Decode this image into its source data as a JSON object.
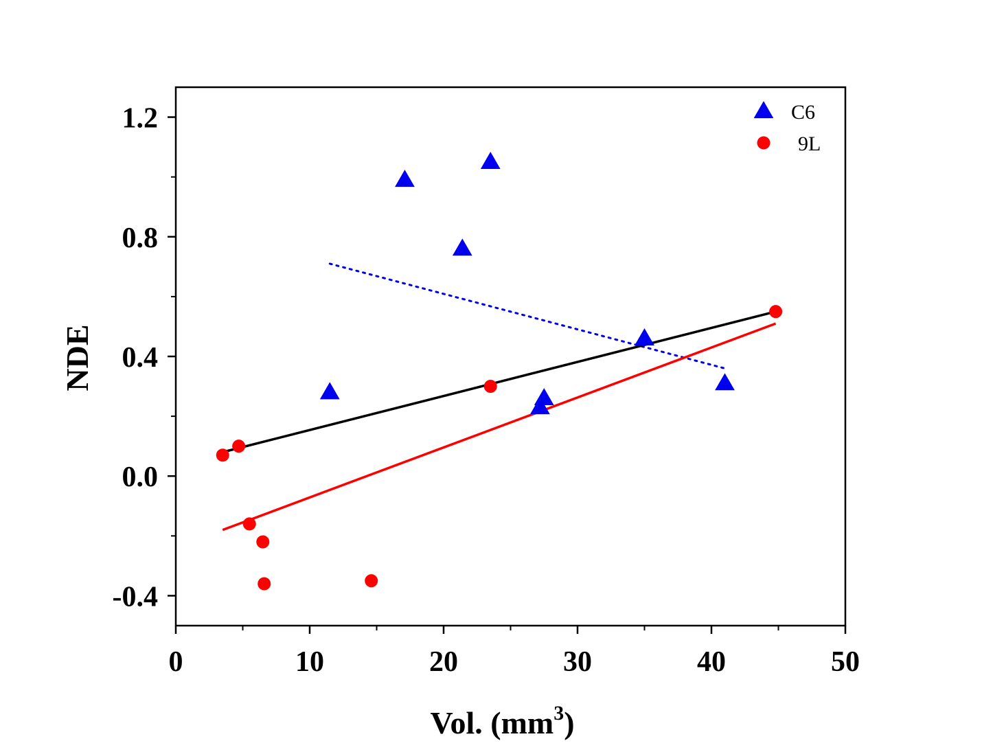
{
  "chart_data": {
    "type": "scatter",
    "title": "",
    "xlabel": "Vol. (mm",
    "xlabel_sup": "3",
    "xlabel_close": ")",
    "ylabel": "NDE",
    "xlim": [
      0,
      50
    ],
    "ylim": [
      -0.5,
      1.3
    ],
    "x_ticks": [
      0,
      10,
      20,
      30,
      40,
      50
    ],
    "x_tick_labels": [
      "0",
      "10",
      "20",
      "30",
      "40",
      "50"
    ],
    "x_minor_ticks": [
      5,
      15,
      25,
      35,
      45
    ],
    "y_ticks": [
      -0.4,
      0.0,
      0.4,
      0.8,
      1.2
    ],
    "y_tick_labels": [
      "-0.4",
      "0.0",
      "0.4",
      "0.8",
      "1.2"
    ],
    "y_minor_ticks": [
      -0.2,
      0.2,
      0.6,
      1.0
    ],
    "legend_position": "top-right",
    "series": [
      {
        "name": "C6",
        "marker": "triangle",
        "color": "#0000ee",
        "points": [
          {
            "x": 11.5,
            "y": 0.28
          },
          {
            "x": 17.1,
            "y": 0.99
          },
          {
            "x": 21.4,
            "y": 0.76
          },
          {
            "x": 23.5,
            "y": 1.05
          },
          {
            "x": 27.2,
            "y": 0.23
          },
          {
            "x": 27.5,
            "y": 0.26
          },
          {
            "x": 35.0,
            "y": 0.46
          },
          {
            "x": 41.0,
            "y": 0.31
          }
        ]
      },
      {
        "name": "9L",
        "marker": "circle",
        "color": "#ff0000",
        "points": [
          {
            "x": 3.5,
            "y": 0.07
          },
          {
            "x": 4.7,
            "y": 0.1
          },
          {
            "x": 5.5,
            "y": -0.16
          },
          {
            "x": 6.5,
            "y": -0.22
          },
          {
            "x": 6.6,
            "y": -0.36
          },
          {
            "x": 14.6,
            "y": -0.35
          },
          {
            "x": 23.5,
            "y": 0.3
          },
          {
            "x": 44.8,
            "y": 0.55
          }
        ]
      }
    ],
    "fit_lines": [
      {
        "name": "C6 fit",
        "color": "#0000ee",
        "style": "dotted",
        "x": [
          11.5,
          41.0
        ],
        "y": [
          0.71,
          0.36
        ]
      },
      {
        "name": "9L fit",
        "color": "#ff0000",
        "style": "solid",
        "x": [
          3.5,
          44.8
        ],
        "y": [
          -0.18,
          0.51
        ]
      },
      {
        "name": "combined fit",
        "color": "#000000",
        "style": "solid",
        "x": [
          3.5,
          44.8
        ],
        "y": [
          0.08,
          0.55
        ]
      }
    ]
  }
}
